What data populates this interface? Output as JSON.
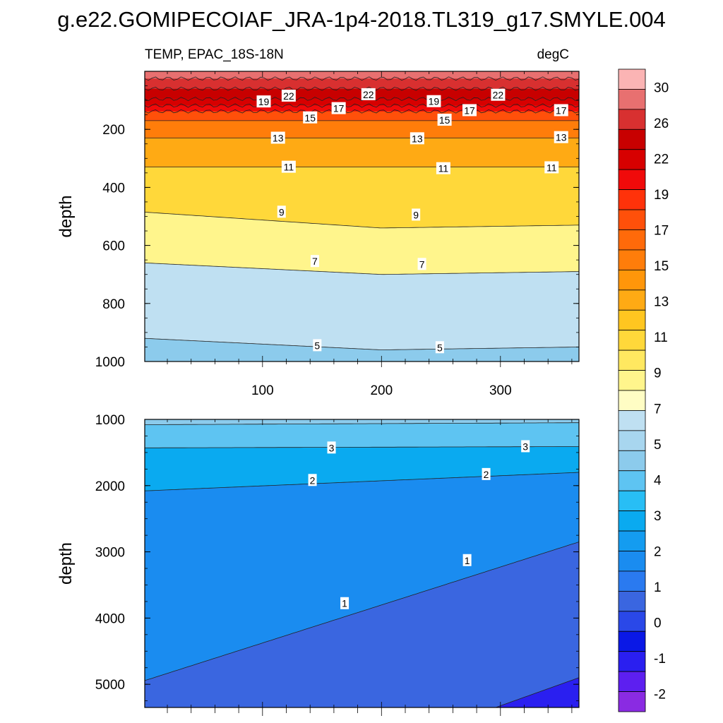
{
  "chart_data": {
    "type": "contour",
    "title": "g.e22.GOMIPECOIAF_JRA-1p4-2018.TL319_g17.SMYLE.004",
    "subtitle_left": "TEMP, EPAC_18S-18N",
    "subtitle_right": "degC",
    "colorbar_values": [
      -2,
      -1,
      0,
      1,
      2,
      3,
      4,
      5,
      7,
      9,
      11,
      13,
      15,
      17,
      19,
      22,
      26,
      30
    ],
    "colorbar_colors": [
      "#8a2be2",
      "#5d1ff0",
      "#2a1ff0",
      "#0a18e6",
      "#2a48e8",
      "#3a66e0",
      "#2a7af0",
      "#1a8cf0",
      "#149cf0",
      "#0aaaf0",
      "#28bef5",
      "#5ec4f2",
      "#8ccbec",
      "#a8d6ef",
      "#bfe0f2",
      "#fffdc4",
      "#fff58c",
      "#ffe860",
      "#ffd83a",
      "#ffc620",
      "#ffaa14",
      "#ff960a",
      "#ff7d0a",
      "#ff6a0a",
      "#ff500a",
      "#ff320a",
      "#f00a0a",
      "#d70000",
      "#c80000",
      "#d83030",
      "#e87070",
      "#fbb4b4"
    ],
    "panels": [
      {
        "name": "upper",
        "ylabel": "depth",
        "ylim": [
          0,
          1000
        ],
        "xlim": [
          1,
          366
        ],
        "xticks": [
          100,
          200,
          300
        ],
        "yticks": [
          200,
          400,
          600,
          800,
          1000
        ],
        "isotherms": [
          {
            "level": 30,
            "depth_at_x": [
              [
                0,
                25
              ],
              [
                366,
                25
              ]
            ]
          },
          {
            "level": 26,
            "depth_at_x": [
              [
                0,
                60
              ],
              [
                366,
                60
              ]
            ]
          },
          {
            "level": 22,
            "depth_at_x": [
              [
                0,
                95
              ],
              [
                366,
                95
              ]
            ]
          },
          {
            "level": 19,
            "depth_at_x": [
              [
                0,
                118
              ],
              [
                366,
                118
              ]
            ]
          },
          {
            "level": 17,
            "depth_at_x": [
              [
                0,
                138
              ],
              [
                366,
                138
              ]
            ]
          },
          {
            "level": 15,
            "depth_at_x": [
              [
                0,
                170
              ],
              [
                366,
                170
              ]
            ]
          },
          {
            "level": 13,
            "depth_at_x": [
              [
                0,
                230
              ],
              [
                366,
                230
              ]
            ]
          },
          {
            "level": 11,
            "depth_at_x": [
              [
                0,
                330
              ],
              [
                366,
                330
              ]
            ]
          },
          {
            "level": 9,
            "depth_at_x": [
              [
                0,
                485
              ],
              [
                200,
                540
              ],
              [
                366,
                530
              ]
            ]
          },
          {
            "level": 7,
            "depth_at_x": [
              [
                0,
                660
              ],
              [
                200,
                700
              ],
              [
                366,
                690
              ]
            ]
          },
          {
            "level": 5,
            "depth_at_x": [
              [
                0,
                920
              ],
              [
                200,
                960
              ],
              [
                366,
                950
              ]
            ]
          }
        ],
        "contour_labels": [
          {
            "text": "22",
            "x": 122,
            "depth": 85
          },
          {
            "text": "22",
            "x": 189,
            "depth": 80
          },
          {
            "text": "22",
            "x": 298,
            "depth": 82
          },
          {
            "text": "19",
            "x": 101,
            "depth": 105
          },
          {
            "text": "19",
            "x": 244,
            "depth": 104
          },
          {
            "text": "17",
            "x": 164,
            "depth": 128
          },
          {
            "text": "17",
            "x": 274,
            "depth": 135
          },
          {
            "text": "17",
            "x": 351,
            "depth": 135
          },
          {
            "text": "15",
            "x": 140,
            "depth": 160
          },
          {
            "text": "15",
            "x": 253,
            "depth": 168
          },
          {
            "text": "13",
            "x": 113,
            "depth": 230
          },
          {
            "text": "13",
            "x": 230,
            "depth": 232
          },
          {
            "text": "13",
            "x": 351,
            "depth": 228
          },
          {
            "text": "11",
            "x": 122,
            "depth": 330
          },
          {
            "text": "11",
            "x": 252,
            "depth": 335
          },
          {
            "text": "11",
            "x": 343,
            "depth": 332
          },
          {
            "text": "9",
            "x": 116,
            "depth": 485
          },
          {
            "text": "9",
            "x": 229,
            "depth": 495
          },
          {
            "text": "7",
            "x": 144,
            "depth": 655
          },
          {
            "text": "7",
            "x": 234,
            "depth": 665
          },
          {
            "text": "5",
            "x": 146,
            "depth": 945
          },
          {
            "text": "5",
            "x": 249,
            "depth": 952
          }
        ]
      },
      {
        "name": "lower",
        "ylabel": "depth",
        "ylim": [
          1000,
          5350
        ],
        "xlim": [
          1,
          366
        ],
        "xticks": [],
        "yticks": [
          1000,
          2000,
          3000,
          4000,
          5000
        ],
        "isotherms": [
          {
            "level": 4,
            "depth_at_x": [
              [
                0,
                1080
              ],
              [
                366,
                1050
              ]
            ]
          },
          {
            "level": 3,
            "depth_at_x": [
              [
                0,
                1430
              ],
              [
                366,
                1410
              ]
            ]
          },
          {
            "level": 2,
            "depth_at_x": [
              [
                0,
                2080
              ],
              [
                366,
                1800
              ]
            ]
          },
          {
            "level": 1,
            "depth_at_x": [
              [
                0,
                4950
              ],
              [
                366,
                2850
              ]
            ]
          },
          {
            "level": 0,
            "depth_at_x": [
              [
                296,
                5350
              ],
              [
                366,
                4900
              ]
            ]
          }
        ],
        "contour_labels": [
          {
            "text": "3",
            "x": 158,
            "depth": 1430
          },
          {
            "text": "3",
            "x": 321,
            "depth": 1410
          },
          {
            "text": "2",
            "x": 142,
            "depth": 1920
          },
          {
            "text": "2",
            "x": 288,
            "depth": 1830
          },
          {
            "text": "1",
            "x": 169,
            "depth": 3780
          },
          {
            "text": "1",
            "x": 272,
            "depth": 3130
          }
        ]
      }
    ]
  }
}
